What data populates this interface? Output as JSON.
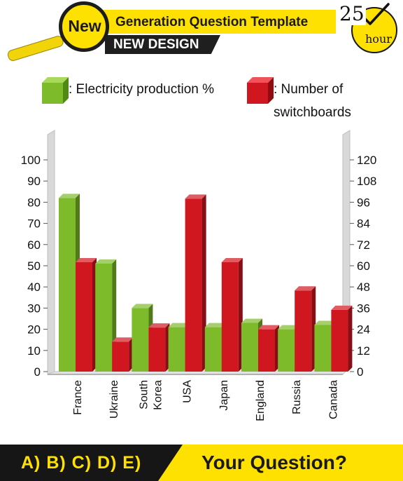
{
  "header": {
    "badge": "New",
    "title": "Generation Question Template",
    "subtitle": "NEW DESIGN",
    "timer_value": "25",
    "timer_unit": "hour"
  },
  "colors": {
    "green": "#7dbb2a",
    "red": "#d0161e",
    "yellow": "#ffe100",
    "dark": "#161616"
  },
  "chart_data": {
    "type": "bar",
    "categories": [
      "France",
      "Ukraine",
      "South Korea",
      "USA",
      "Japan",
      "England",
      "Russia",
      "Canada"
    ],
    "category_labels": [
      [
        "France"
      ],
      [
        "Ukraine"
      ],
      [
        "South",
        "Korea"
      ],
      [
        "USA"
      ],
      [
        "Japan"
      ],
      [
        "England"
      ],
      [
        "Russia"
      ],
      [
        "Canada"
      ]
    ],
    "series": [
      {
        "name": "Electricity production %",
        "axis": "left",
        "color": "#7dbb2a",
        "values": [
          82,
          51,
          30,
          21,
          21,
          23,
          20,
          22
        ]
      },
      {
        "name": "Number of switchboards",
        "axis": "right",
        "color": "#d0161e",
        "values": [
          62,
          17,
          25,
          98,
          62,
          24,
          46,
          35
        ]
      }
    ],
    "y_left": {
      "ticks": [
        0,
        10,
        20,
        30,
        40,
        50,
        60,
        70,
        80,
        90,
        100
      ],
      "ylim": [
        0,
        100
      ]
    },
    "y_right": {
      "ticks": [
        0,
        12,
        24,
        36,
        48,
        60,
        72,
        84,
        96,
        108,
        120
      ],
      "ylim": [
        0,
        120
      ]
    },
    "legend": {
      "placement": "top",
      "items": [
        {
          "label": ": Electricity production %",
          "color": "#7dbb2a"
        },
        {
          "label_line1": ": Number of",
          "label_line2": "switchboards",
          "color": "#d0161e"
        }
      ]
    },
    "grid": false
  },
  "footer": {
    "answers": "A) B) C) D) E)",
    "question": "Your Question?"
  }
}
